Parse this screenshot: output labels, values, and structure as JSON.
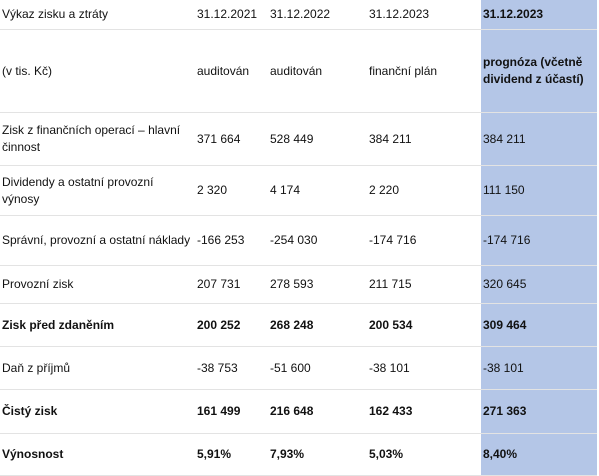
{
  "table": {
    "header": [
      "Výkaz zisku a ztráty",
      "31.12.2021",
      "31.12.2022",
      "31.12.2023",
      "31.12.2023"
    ],
    "rows": [
      [
        "(v tis. Kč)",
        "auditován",
        "auditován",
        "finanční plán",
        "prognóza (včetně dividend z účastí)"
      ],
      [
        "Zisk z finančních operací – hlavní činnost",
        "371 664",
        "528 449",
        "384 211",
        "384 211"
      ],
      [
        "Dividendy a ostatní provozní výnosy",
        "2 320",
        "4 174",
        "2 220",
        "111 150"
      ],
      [
        "Správní, provozní a ostatní náklady",
        "-166 253",
        "-254 030",
        "-174 716",
        "-174 716"
      ],
      [
        "Provozní zisk",
        "207 731",
        "278 593",
        "211 715",
        "320 645"
      ],
      [
        "Zisk před zdaněním",
        "200 252",
        "268 248",
        "200 534",
        "309 464"
      ],
      [
        "Daň z příjmů",
        "-38 753",
        "-51 600",
        "-38 101",
        "-38 101"
      ],
      [
        "Čistý zisk",
        "161 499",
        "216 648",
        "162 433",
        "271 363"
      ],
      [
        "Výnosnost",
        "5,91%",
        "7,93%",
        "5,03%",
        "8,40%"
      ]
    ]
  }
}
